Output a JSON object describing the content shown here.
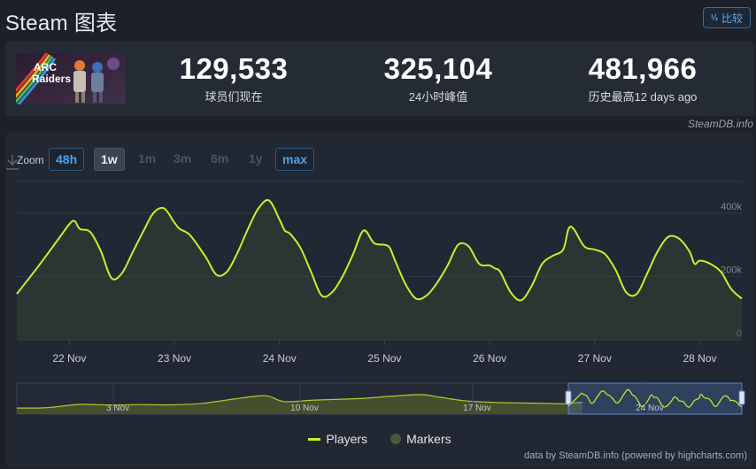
{
  "header": {
    "title": "Steam 图表",
    "compare_label": "比较"
  },
  "game": {
    "logo_text": "ARC Raiders"
  },
  "stats": [
    {
      "value": "129,533",
      "label": "球员们现在"
    },
    {
      "value": "325,104",
      "label": "24小时峰值"
    },
    {
      "value": "481,966",
      "label": "历史最高12 days ago"
    }
  ],
  "credit": "SteamDB.info",
  "zoom": {
    "label": "Zoom",
    "options": [
      "48h",
      "1w",
      "1m",
      "3m",
      "6m",
      "1y",
      "max"
    ],
    "selected": "1w",
    "highlighted": [
      "48h",
      "max"
    ]
  },
  "legend": {
    "players": "Players",
    "markers": "Markers"
  },
  "footer": "data by SteamDB.info (powered by highcharts.com)",
  "colors": {
    "line": "#c5f22b",
    "marker": "#4b5a34",
    "accent": "#4aa3e8"
  },
  "chart_data": {
    "type": "line",
    "series": [
      {
        "name": "Players"
      }
    ],
    "x_ticks": [
      "22 Nov",
      "23 Nov",
      "24 Nov",
      "25 Nov",
      "26 Nov",
      "27 Nov",
      "28 Nov"
    ],
    "y_ticks": [
      "0",
      "200k",
      "400k"
    ],
    "ylim": [
      0,
      500000
    ],
    "x": [
      21.5,
      21.7,
      21.9,
      22.0,
      22.05,
      22.1,
      22.2,
      22.3,
      22.4,
      22.5,
      22.6,
      22.7,
      22.8,
      22.9,
      23.0,
      23.05,
      23.15,
      23.3,
      23.4,
      23.5,
      23.6,
      23.7,
      23.8,
      23.9,
      24.0,
      24.05,
      24.1,
      24.2,
      24.3,
      24.4,
      24.5,
      24.6,
      24.7,
      24.8,
      24.9,
      25.0,
      25.05,
      25.1,
      25.2,
      25.3,
      25.4,
      25.5,
      25.6,
      25.7,
      25.8,
      25.9,
      26.0,
      26.05,
      26.1,
      26.2,
      26.3,
      26.4,
      26.5,
      26.6,
      26.7,
      26.75,
      26.8,
      26.9,
      27.0,
      27.1,
      27.2,
      27.3,
      27.4,
      27.5,
      27.6,
      27.7,
      27.8,
      27.9,
      27.95,
      28.0,
      28.1,
      28.2,
      28.3,
      28.4
    ],
    "y": [
      145000,
      230000,
      320000,
      365000,
      375000,
      350000,
      340000,
      280000,
      195000,
      210000,
      275000,
      340000,
      400000,
      415000,
      370000,
      350000,
      330000,
      260000,
      205000,
      215000,
      275000,
      350000,
      415000,
      440000,
      380000,
      345000,
      335000,
      290000,
      215000,
      140000,
      150000,
      200000,
      270000,
      345000,
      305000,
      300000,
      290000,
      250000,
      175000,
      130000,
      140000,
      180000,
      235000,
      300000,
      295000,
      240000,
      235000,
      225000,
      215000,
      150000,
      125000,
      170000,
      240000,
      265000,
      285000,
      350000,
      350000,
      295000,
      285000,
      270000,
      220000,
      150000,
      145000,
      210000,
      280000,
      325000,
      320000,
      280000,
      240000,
      250000,
      240000,
      215000,
      160000,
      130000
    ],
    "navigator": {
      "x_ticks": [
        "3 Nov",
        "10 Nov",
        "17 Nov",
        "24 Nov"
      ]
    }
  }
}
